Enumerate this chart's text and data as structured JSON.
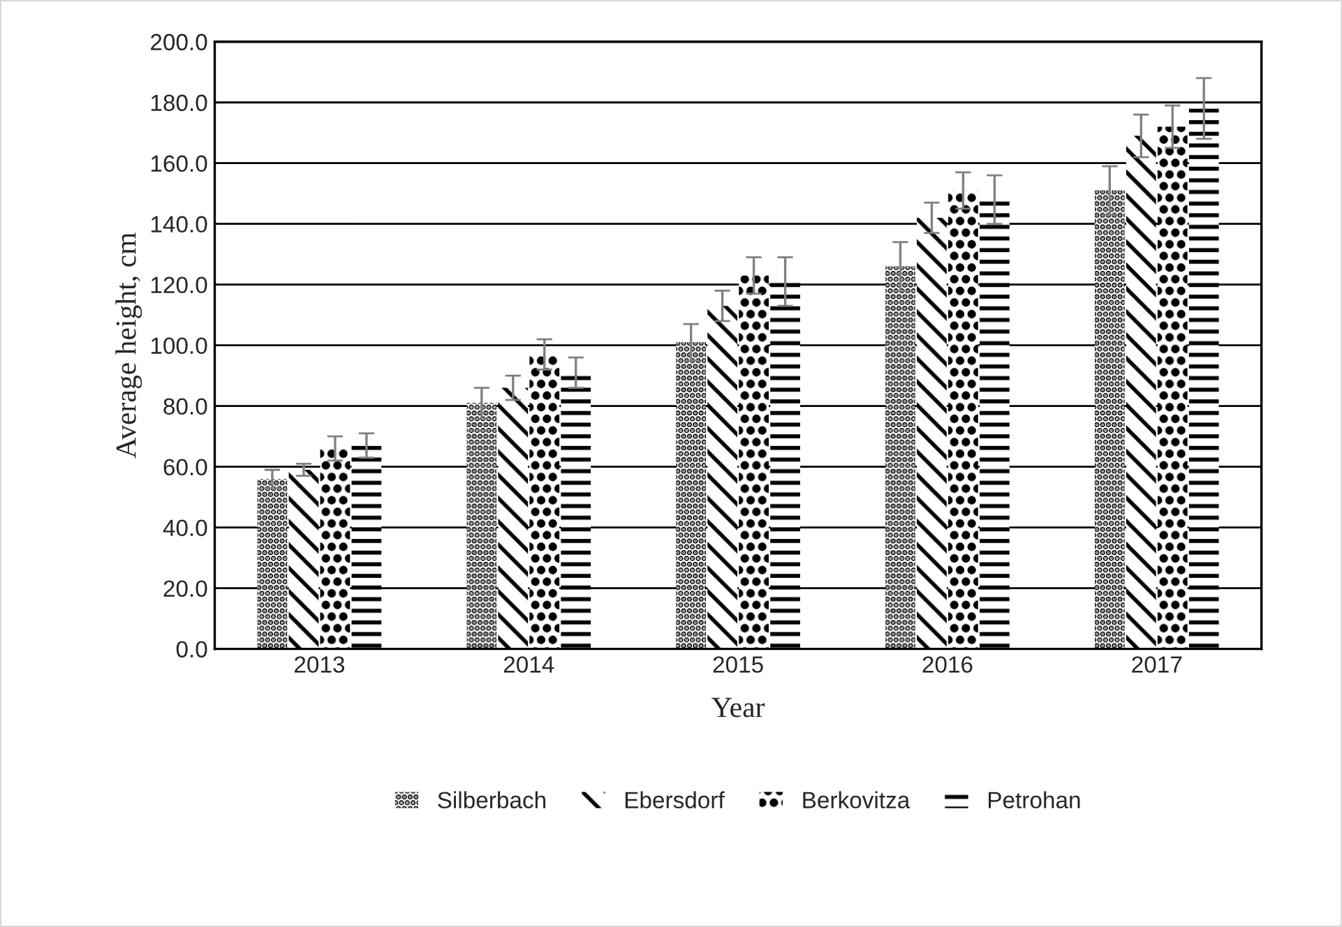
{
  "chart_data": {
    "type": "bar",
    "xlabel": "Year",
    "ylabel": "Average height, cm",
    "categories": [
      "2013",
      "2014",
      "2015",
      "2016",
      "2017"
    ],
    "series": [
      {
        "name": "Silberbach",
        "color": "#000000",
        "values": [
          56,
          81,
          101,
          126,
          151
        ],
        "errors": [
          3,
          5,
          6,
          8,
          8
        ]
      },
      {
        "name": "Ebersdorf",
        "color": "#000000",
        "values": [
          59,
          86,
          113,
          142,
          169
        ],
        "errors": [
          2,
          4,
          5,
          5,
          7
        ]
      },
      {
        "name": "Berkovitza",
        "color": "#000000",
        "values": [
          66,
          97,
          123,
          151,
          172
        ],
        "errors": [
          4,
          5,
          6,
          6,
          7
        ]
      },
      {
        "name": "Petrohan",
        "color": "#000000",
        "values": [
          67,
          91,
          121,
          148,
          178
        ],
        "errors": [
          4,
          5,
          8,
          8,
          10
        ]
      }
    ],
    "ylim": [
      0,
      200
    ],
    "yticks": [
      {
        "value": 0,
        "label": "0.0"
      },
      {
        "value": 20,
        "label": "20.0"
      },
      {
        "value": 40,
        "label": "40.0"
      },
      {
        "value": 60,
        "label": "60.0"
      },
      {
        "value": 80,
        "label": "80.0"
      },
      {
        "value": 100,
        "label": "100.0"
      },
      {
        "value": 120,
        "label": "120.0"
      },
      {
        "value": 140,
        "label": "140.0"
      },
      {
        "value": 160,
        "label": "160.0"
      },
      {
        "value": 180,
        "label": "180.0"
      },
      {
        "value": 200,
        "label": "200.0"
      }
    ],
    "grid": "y",
    "legend": "bottom"
  }
}
